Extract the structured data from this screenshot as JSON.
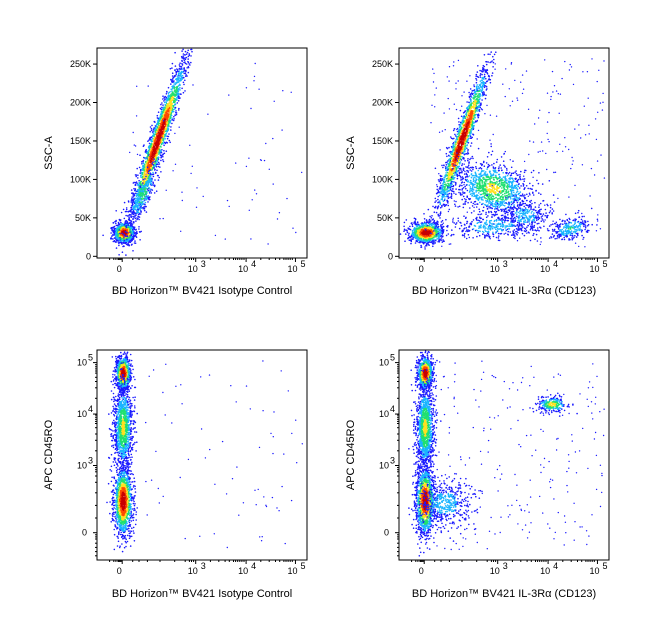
{
  "colors": {
    "density_low": "#1a1aff",
    "density_mid1": "#19b4ff",
    "density_mid2": "#20e070",
    "density_mid3": "#ffe020",
    "density_high": "#ff4a00",
    "peak": "#c80000"
  },
  "chart_data": [
    {
      "type": "scatter",
      "subtype": "flow-cytometry-density-dot-plot",
      "xlabel": "BD Horizon™ BV421 Isotype Control",
      "ylabel": "SSC-A",
      "x_ticks": [
        "0",
        "10",
        "10",
        "10"
      ],
      "x_tick_exponents": [
        "",
        "3",
        "4",
        "5"
      ],
      "y_ticks": [
        "0",
        "50K",
        "100K",
        "150K",
        "200K",
        "250K"
      ],
      "x_scale": "biexponential",
      "y_scale": "linear",
      "ylim": [
        0,
        262144
      ],
      "populations": [
        {
          "x_center": 0,
          "y_center": 20000,
          "density": "high"
        },
        {
          "x_center": 250,
          "y_center": 150000,
          "density": "high"
        }
      ]
    },
    {
      "type": "scatter",
      "subtype": "flow-cytometry-density-dot-plot",
      "xlabel": "BD Horizon™ BV421 IL-3Rα (CD123)",
      "ylabel": "SSC-A",
      "x_ticks": [
        "0",
        "10",
        "10",
        "10"
      ],
      "x_tick_exponents": [
        "",
        "3",
        "4",
        "5"
      ],
      "y_ticks": [
        "0",
        "50K",
        "100K",
        "150K",
        "200K",
        "250K"
      ],
      "x_scale": "biexponential",
      "y_scale": "linear",
      "ylim": [
        0,
        262144
      ],
      "populations": [
        {
          "x_center": 0,
          "y_center": 20000,
          "density": "high"
        },
        {
          "x_center": 250,
          "y_center": 150000,
          "density": "high"
        },
        {
          "x_center": 800,
          "y_center": 80000,
          "density": "medium"
        },
        {
          "x_center": 15000,
          "y_center": 28000,
          "density": "low"
        }
      ]
    },
    {
      "type": "scatter",
      "subtype": "flow-cytometry-density-dot-plot",
      "xlabel": "BD Horizon™ BV421 Isotype Control",
      "ylabel": "APC CD45RO",
      "x_ticks": [
        "0",
        "10",
        "10",
        "10"
      ],
      "x_tick_exponents": [
        "",
        "3",
        "4",
        "5"
      ],
      "y_ticks": [
        "0",
        "10",
        "10",
        "10"
      ],
      "y_tick_exponents": [
        "",
        "3",
        "4",
        "5"
      ],
      "x_scale": "biexponential",
      "y_scale": "biexponential",
      "populations": [
        {
          "x_center": 0,
          "y_center": 100000,
          "density": "high"
        },
        {
          "x_center": 0,
          "y_center": 300,
          "density": "high"
        }
      ]
    },
    {
      "type": "scatter",
      "subtype": "flow-cytometry-density-dot-plot",
      "xlabel": "BD Horizon™ BV421 IL-3Rα (CD123)",
      "ylabel": "APC CD45RO",
      "x_ticks": [
        "0",
        "10",
        "10",
        "10"
      ],
      "x_tick_exponents": [
        "",
        "3",
        "4",
        "5"
      ],
      "y_ticks": [
        "0",
        "10",
        "10",
        "10"
      ],
      "y_tick_exponents": [
        "",
        "3",
        "4",
        "5"
      ],
      "x_scale": "biexponential",
      "y_scale": "biexponential",
      "populations": [
        {
          "x_center": 0,
          "y_center": 100000,
          "density": "high"
        },
        {
          "x_center": 0,
          "y_center": 300,
          "density": "high"
        },
        {
          "x_center": 300,
          "y_center": 400,
          "density": "low"
        },
        {
          "x_center": 15000,
          "y_center": 20000,
          "density": "low"
        }
      ]
    }
  ]
}
